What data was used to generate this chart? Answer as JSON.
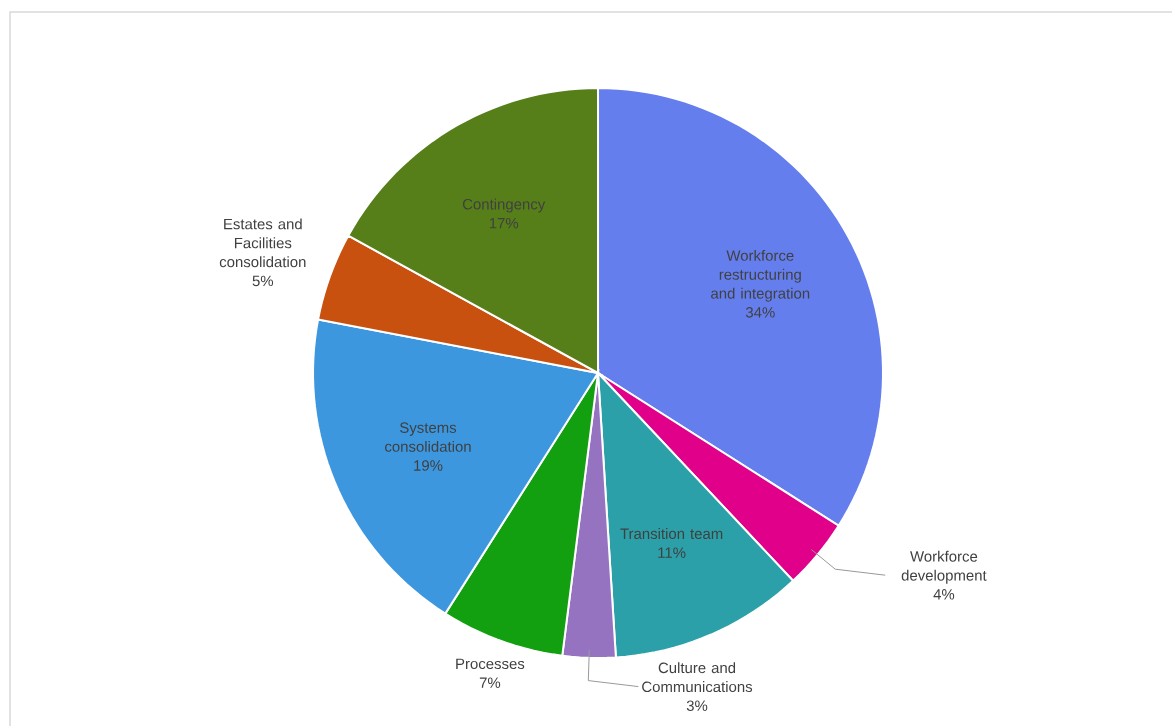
{
  "chart_data": {
    "type": "pie",
    "categories": [
      "Workforce restructuring and integration",
      "Workforce development",
      "Transition team",
      "Culture and Communications",
      "Processes",
      "Systems consolidation",
      "Estates and Facilities consolidation",
      "Contingency"
    ],
    "values": [
      34,
      4,
      11,
      3,
      7,
      19,
      5,
      17
    ],
    "value_labels": [
      "34%",
      "4%",
      "11%",
      "3%",
      "7%",
      "19%",
      "5%",
      "17%"
    ],
    "colors": [
      "#657eee",
      "#e0008a",
      "#2ba0a8",
      "#9673c0",
      "#13a010",
      "#3c97df",
      "#c95110",
      "#567f1a"
    ]
  }
}
